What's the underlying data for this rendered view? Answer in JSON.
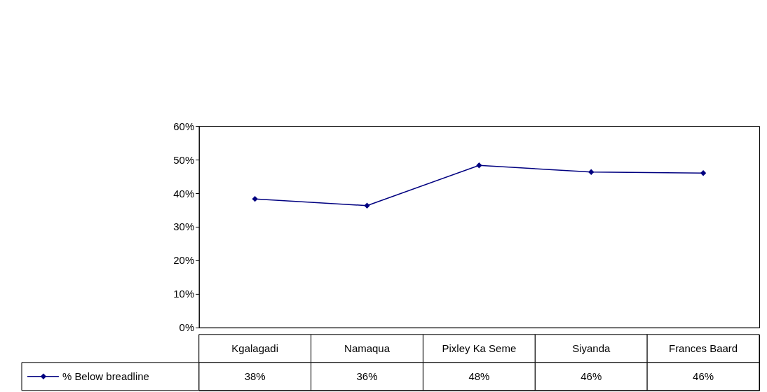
{
  "chart_data": {
    "type": "line",
    "categories": [
      "Kgalagadi",
      "Namaqua",
      "Pixley Ka Seme",
      "Siyanda",
      "Frances Baard"
    ],
    "series": [
      {
        "name": "% Below breadline",
        "color": "#000080",
        "values": [
          38.3,
          36.3,
          48.3,
          46.3,
          46.0
        ],
        "value_labels": [
          "38%",
          "36%",
          "48%",
          "46%",
          "46%"
        ]
      }
    ],
    "ylim": [
      0,
      60
    ],
    "yticks": [
      {
        "value": 0,
        "label": "0%"
      },
      {
        "value": 10,
        "label": "10%"
      },
      {
        "value": 20,
        "label": "20%"
      },
      {
        "value": 30,
        "label": "30%"
      },
      {
        "value": 40,
        "label": "40%"
      },
      {
        "value": 50,
        "label": "50%"
      },
      {
        "value": 60,
        "label": "60%"
      }
    ],
    "grid": false,
    "legend": "bottom left",
    "marker": "diamond",
    "line_style": "solid"
  }
}
